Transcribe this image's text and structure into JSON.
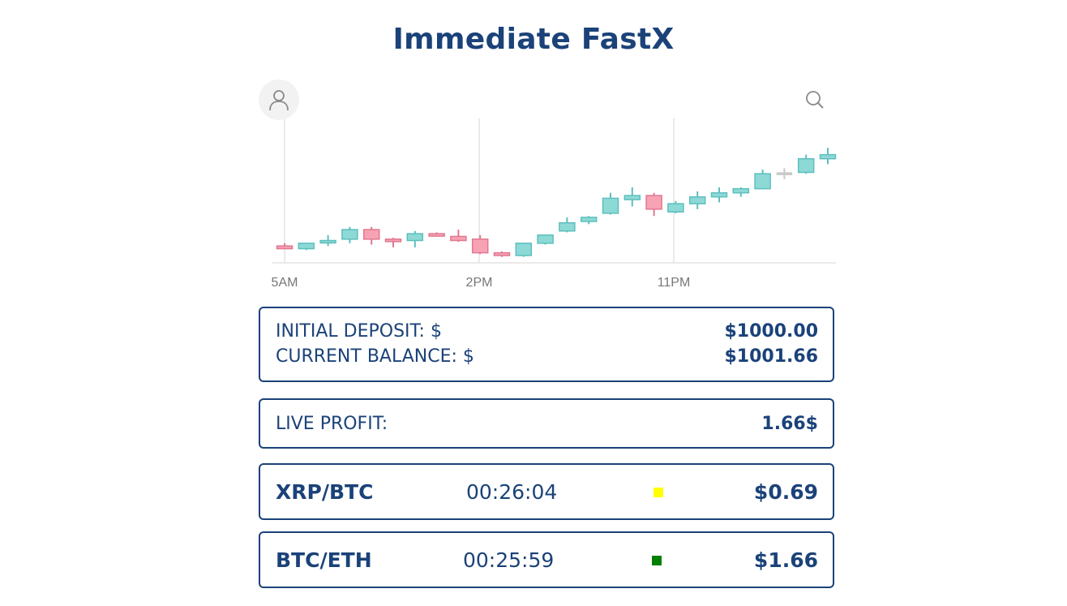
{
  "app": {
    "title": "Immediate FastX"
  },
  "chart": {
    "x_labels": [
      "5AM",
      "2PM",
      "11PM"
    ],
    "colors": {
      "up": "#8dd9d6",
      "up_stroke": "#5dbfbe",
      "down": "#f7a3b5",
      "down_stroke": "#e0788f",
      "neutral": "#c8c8c8"
    }
  },
  "chart_data": {
    "type": "candlestick",
    "x_labels": [
      "5AM",
      "2PM",
      "11PM"
    ],
    "y_axis_labels": "none",
    "candles": [
      {
        "o": 10,
        "c": 8,
        "h": 12,
        "l": 8,
        "dir": "down"
      },
      {
        "o": 8,
        "c": 12,
        "h": 12,
        "l": 7,
        "dir": "up"
      },
      {
        "o": 13,
        "c": 14,
        "h": 18,
        "l": 10,
        "dir": "up"
      },
      {
        "o": 15,
        "c": 22,
        "h": 24,
        "l": 12,
        "dir": "up"
      },
      {
        "o": 22,
        "c": 15,
        "h": 24,
        "l": 11,
        "dir": "down"
      },
      {
        "o": 15,
        "c": 14,
        "h": 16,
        "l": 9,
        "dir": "down"
      },
      {
        "o": 14,
        "c": 19,
        "h": 21,
        "l": 9,
        "dir": "up"
      },
      {
        "o": 19,
        "c": 18,
        "h": 20,
        "l": 18,
        "dir": "down"
      },
      {
        "o": 17,
        "c": 14,
        "h": 22,
        "l": 13,
        "dir": "down"
      },
      {
        "o": 15,
        "c": 5,
        "h": 18,
        "l": 4,
        "dir": "down"
      },
      {
        "o": 5,
        "c": 3,
        "h": 6,
        "l": 2,
        "dir": "down"
      },
      {
        "o": 3,
        "c": 12,
        "h": 12,
        "l": 2,
        "dir": "up"
      },
      {
        "o": 12,
        "c": 18,
        "h": 18,
        "l": 11,
        "dir": "up"
      },
      {
        "o": 21,
        "c": 27,
        "h": 31,
        "l": 20,
        "dir": "up"
      },
      {
        "o": 28,
        "c": 31,
        "h": 32,
        "l": 26,
        "dir": "up"
      },
      {
        "o": 34,
        "c": 45,
        "h": 49,
        "l": 33,
        "dir": "up"
      },
      {
        "o": 44,
        "c": 47,
        "h": 53,
        "l": 39,
        "dir": "up"
      },
      {
        "o": 47,
        "c": 37,
        "h": 49,
        "l": 32,
        "dir": "down"
      },
      {
        "o": 35,
        "c": 41,
        "h": 43,
        "l": 34,
        "dir": "up"
      },
      {
        "o": 41,
        "c": 46,
        "h": 50,
        "l": 37,
        "dir": "up"
      },
      {
        "o": 46,
        "c": 49,
        "h": 53,
        "l": 42,
        "dir": "up"
      },
      {
        "o": 49,
        "c": 52,
        "h": 53,
        "l": 46,
        "dir": "up"
      },
      {
        "o": 52,
        "c": 63,
        "h": 66,
        "l": 52,
        "dir": "up"
      },
      {
        "o": 63,
        "c": 63,
        "h": 67,
        "l": 59,
        "dir": "flat"
      },
      {
        "o": 64,
        "c": 74,
        "h": 77,
        "l": 63,
        "dir": "up"
      },
      {
        "o": 74,
        "c": 77,
        "h": 82,
        "l": 70,
        "dir": "up"
      }
    ]
  },
  "account": {
    "initial_label": "INITIAL DEPOSIT: $",
    "initial_value": "$1000.00",
    "balance_label": "CURRENT BALANCE: $",
    "balance_value": "$1001.66"
  },
  "profit": {
    "label": "LIVE PROFIT:",
    "value": "1.66$"
  },
  "trades": [
    {
      "pair": "XRP/BTC",
      "time": "00:26:04",
      "status_color": "#ffff00",
      "amount": "$0.69"
    },
    {
      "pair": "BTC/ETH",
      "time": "00:25:59",
      "status_color": "#008000",
      "amount": "$1.66"
    }
  ]
}
